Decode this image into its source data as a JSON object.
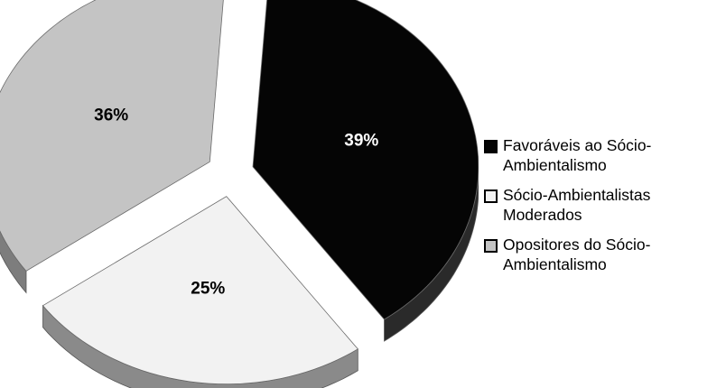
{
  "chart_data": {
    "type": "pie",
    "style": "3d-exploded",
    "title": "",
    "legend_position": "right",
    "slices": [
      {
        "label": "Favoráveis ao Sócio-Ambientalismo",
        "value": 39,
        "value_label": "39%",
        "color": "#050505"
      },
      {
        "label": "Sócio-Ambientalistas Moderados",
        "value": 25,
        "value_label": "25%",
        "color": "#f2f2f2"
      },
      {
        "label": "Opositores do Sócio-Ambientalismo",
        "value": 36,
        "value_label": "36%",
        "color": "#c4c4c4"
      }
    ]
  }
}
